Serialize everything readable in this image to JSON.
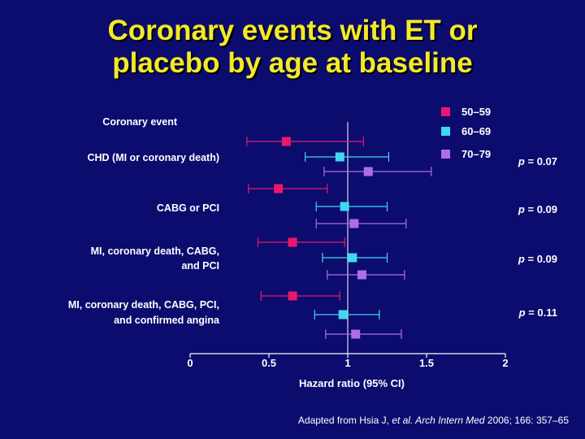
{
  "title_lines": [
    "Coronary events with ET or",
    "placebo by age at baseline"
  ],
  "source": {
    "prefix": "Adapted from Hsia J, ",
    "etal": "et al.",
    "journal": " Arch Intern Med",
    "rest": " 2006; 166: 357–65"
  },
  "colors": {
    "background": "#0c0b6e",
    "title": "#f2ea27",
    "50-59": "#e8186e",
    "60-69": "#3fd8f0",
    "70-79": "#b06ce8",
    "axis": "#ffffff"
  },
  "chart_data": {
    "type": "forest",
    "header_label": "Coronary event",
    "xlabel": "Hazard ratio (95% CI)",
    "x_ticks": [
      "0",
      "0.5",
      "1",
      "1.5",
      "2"
    ],
    "xlim": [
      0,
      2
    ],
    "reference_line": 1,
    "legend_position": "top-right",
    "series": [
      {
        "name": "50–59",
        "color": "#e8186e"
      },
      {
        "name": "60–69",
        "color": "#3fd8f0"
      },
      {
        "name": "70–79",
        "color": "#b06ce8"
      }
    ],
    "groups": [
      {
        "label": [
          "CHD (MI or coronary death)"
        ],
        "p_prefix": "p",
        "p_rest": " = 0.07",
        "rows": [
          {
            "series": "50–59",
            "hr": 0.61,
            "lo": 0.36,
            "hi": 1.1
          },
          {
            "series": "60–69",
            "hr": 0.95,
            "lo": 0.73,
            "hi": 1.26
          },
          {
            "series": "70–79",
            "hr": 1.13,
            "lo": 0.85,
            "hi": 1.53
          }
        ]
      },
      {
        "label": [
          "CABG or PCI"
        ],
        "p_prefix": "p",
        "p_rest": " = 0.09",
        "rows": [
          {
            "series": "50–59",
            "hr": 0.56,
            "lo": 0.37,
            "hi": 0.87
          },
          {
            "series": "60–69",
            "hr": 0.98,
            "lo": 0.8,
            "hi": 1.25
          },
          {
            "series": "70–79",
            "hr": 1.04,
            "lo": 0.8,
            "hi": 1.37
          }
        ]
      },
      {
        "label": [
          "MI, coronary death, CABG,",
          "and PCI"
        ],
        "p_prefix": "p",
        "p_rest": " = 0.09",
        "rows": [
          {
            "series": "50–59",
            "hr": 0.65,
            "lo": 0.43,
            "hi": 0.98
          },
          {
            "series": "60–69",
            "hr": 1.03,
            "lo": 0.84,
            "hi": 1.25
          },
          {
            "series": "70–79",
            "hr": 1.09,
            "lo": 0.87,
            "hi": 1.36
          }
        ]
      },
      {
        "label": [
          "MI, coronary death, CABG, PCI,",
          "and confirmed angina"
        ],
        "p_prefix": "p",
        "p_rest": " = 0.11",
        "rows": [
          {
            "series": "50–59",
            "hr": 0.65,
            "lo": 0.45,
            "hi": 0.95
          },
          {
            "series": "60–69",
            "hr": 0.97,
            "lo": 0.79,
            "hi": 1.2
          },
          {
            "series": "70–79",
            "hr": 1.05,
            "lo": 0.86,
            "hi": 1.34
          }
        ]
      }
    ]
  }
}
